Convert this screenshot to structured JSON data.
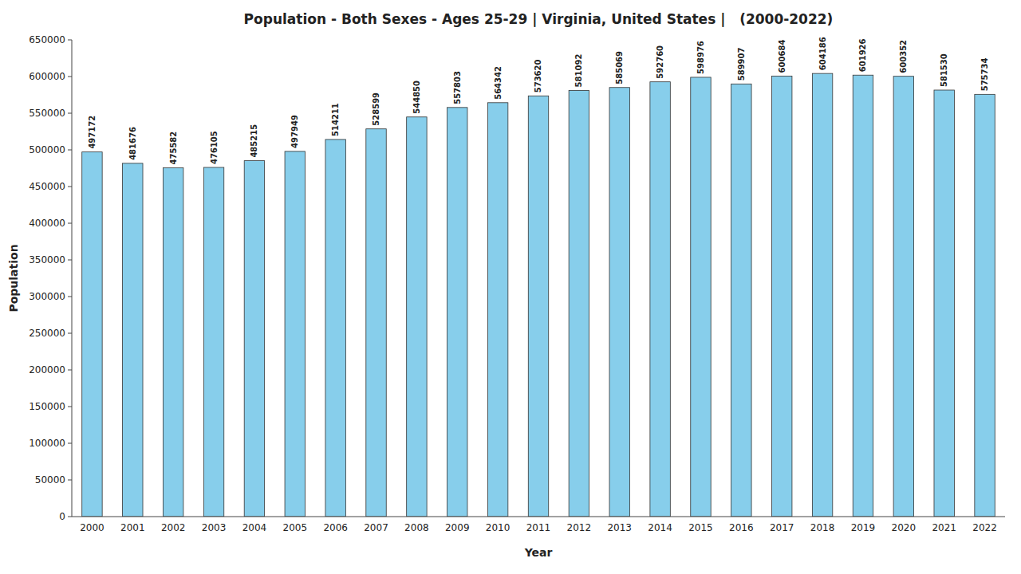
{
  "chart_data": {
    "type": "bar",
    "title": "Population - Both Sexes - Ages 25-29 | Virginia, United States |   (2000-2022)",
    "x_label": "Year",
    "y_label": "Population",
    "categories": [
      "2000",
      "2001",
      "2002",
      "2003",
      "2004",
      "2005",
      "2006",
      "2007",
      "2008",
      "2009",
      "2010",
      "2011",
      "2012",
      "2013",
      "2014",
      "2015",
      "2016",
      "2017",
      "2018",
      "2019",
      "2020",
      "2021",
      "2022"
    ],
    "values": [
      497172,
      481676,
      475582,
      476105,
      485215,
      497949,
      514211,
      528599,
      544850,
      557803,
      564342,
      573620,
      581092,
      585069,
      592760,
      598976,
      589907,
      600684,
      604186,
      601926,
      600352,
      581530,
      575734
    ],
    "color": "#87CEEB",
    "ylim": [
      0,
      650000
    ],
    "yticks": [
      0,
      50000,
      100000,
      150000,
      200000,
      250000,
      300000,
      350000,
      400000,
      450000,
      500000,
      550000,
      600000,
      650000
    ],
    "grid": false,
    "data_labels": true
  }
}
